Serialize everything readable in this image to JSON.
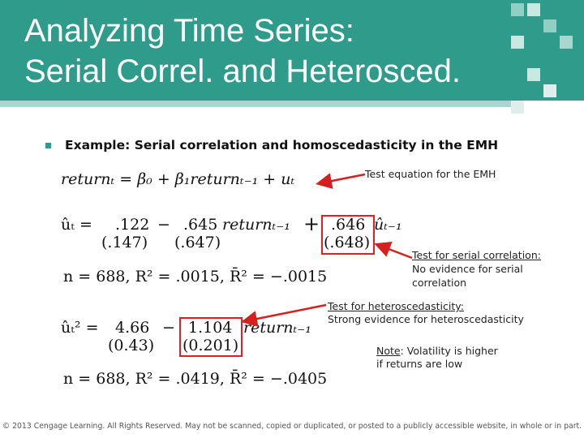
{
  "header": {
    "title_lines": [
      "Analyzing Time Series:",
      "Serial Correl. and Heterosced."
    ]
  },
  "bullet": "Example: Serial correlation and homoscedasticity in the EMH",
  "equations": {
    "test_equation": "returnₜ = β₀ + β₁returnₜ₋₁ + uₜ",
    "serial": {
      "lhs": "ûₜ =",
      "c0": ".122",
      "se0": "(.147)",
      "op1": "−",
      "c1": ".645",
      "v1": "returnₜ₋₁",
      "se1": "(.647)",
      "op2": "+",
      "c2": ".646",
      "se2": "(.648)",
      "v2": "ûₜ₋₁"
    },
    "serial_stats": "n = 688, R² = .0015, R̄² = −.0015",
    "hetero": {
      "lhs": "ûₜ² =",
      "c0": "4.66",
      "se0": "(0.43)",
      "op1": "−",
      "c1": "1.104",
      "se1": "(0.201)",
      "v1": "returnₜ₋₁"
    },
    "hetero_stats": "n = 688, R² = .0419, R̄² = −.0405"
  },
  "annotations": {
    "test": "Test equation for the EMH",
    "serial": [
      "Test for serial correlation:",
      "No evidence for serial",
      "correlation"
    ],
    "hetero": [
      "Test for heteroscedasticity:",
      "Strong evidence for heteroscedasticity"
    ],
    "note": {
      "label": "Note",
      "text": ": Volatility is higher",
      "line2": "if returns are low"
    }
  },
  "footer": "© 2013 Cengage Learning. All Rights Reserved. May not be scanned, copied or duplicated, or posted to a publicly accessible website, in whole or in part."
}
